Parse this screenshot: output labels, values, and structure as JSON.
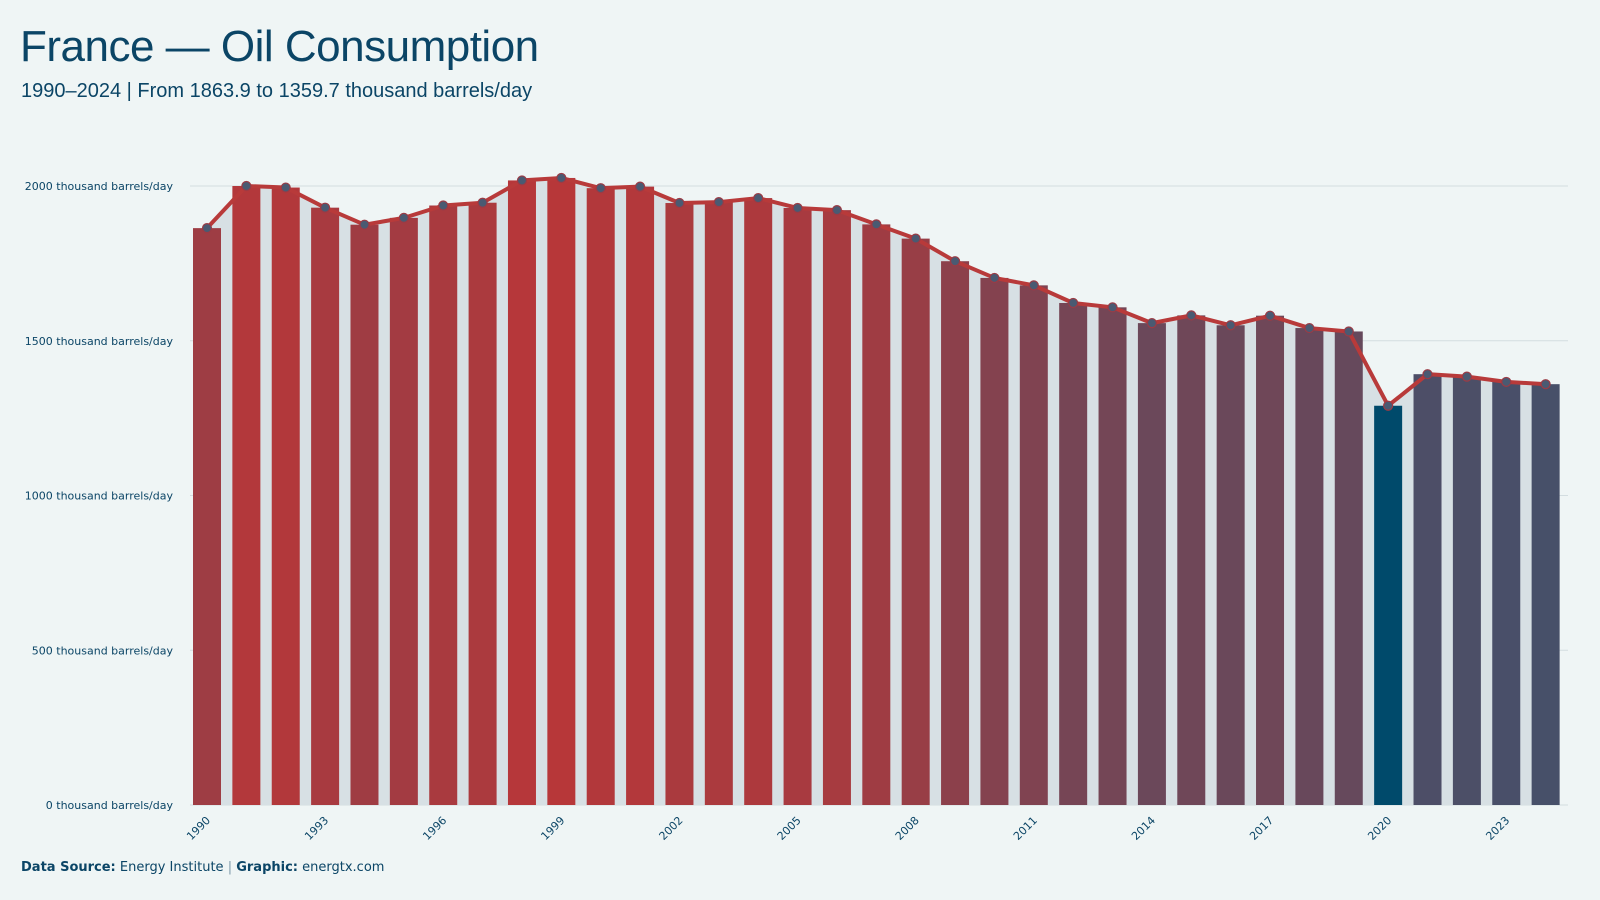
{
  "title": "France — Oil Consumption",
  "subtitle": "1990–2024 | From 1863.9  to 1359.7  thousand barrels/day",
  "footer": {
    "source_label": "Data Source:",
    "source_value": "Energy Institute",
    "separator": "|",
    "graphic_label": "Graphic:",
    "graphic_value": "energtx.com"
  },
  "colors": {
    "background": "#eff5f5",
    "line": "#b83a3a",
    "marker_fill": "#4a5a72",
    "highlight_bar": "#004a6b",
    "text": "#0b4566"
  },
  "chart_data": {
    "type": "bar",
    "x": [
      1990,
      1991,
      1992,
      1993,
      1994,
      1995,
      1996,
      1997,
      1998,
      1999,
      2000,
      2001,
      2002,
      2003,
      2004,
      2005,
      2006,
      2007,
      2008,
      2009,
      2010,
      2011,
      2012,
      2013,
      2014,
      2015,
      2016,
      2017,
      2018,
      2019,
      2020,
      2021,
      2022,
      2023,
      2024
    ],
    "series": [
      {
        "values": [
          1863.9,
          2000,
          1995,
          1930,
          1875,
          1897,
          1937,
          1946,
          2018,
          2026,
          1993,
          1998,
          1945,
          1948,
          1961,
          1929,
          1922,
          1876,
          1830,
          1757,
          1703,
          1679,
          1622,
          1608,
          1557,
          1582,
          1550,
          1581,
          1541,
          1530,
          1290,
          1392,
          1384,
          1367,
          1359.7
        ]
      }
    ],
    "highlight": 2020,
    "xtick_labels": [
      "1990",
      "1993",
      "1996",
      "1999",
      "2002",
      "2005",
      "2008",
      "2011",
      "2014",
      "2017",
      "2020",
      "2023"
    ],
    "ytick_labels": [
      "0 thousand barrels/day",
      "500 thousand barrels/day",
      "1000 thousand barrels/day",
      "1500 thousand barrels/day",
      "2000 thousand barrels/day"
    ],
    "yticks": [
      0,
      500,
      1000,
      1500,
      2000
    ],
    "ylim": [
      0,
      2100
    ],
    "grid": true,
    "overlay": "line with circle markers"
  }
}
